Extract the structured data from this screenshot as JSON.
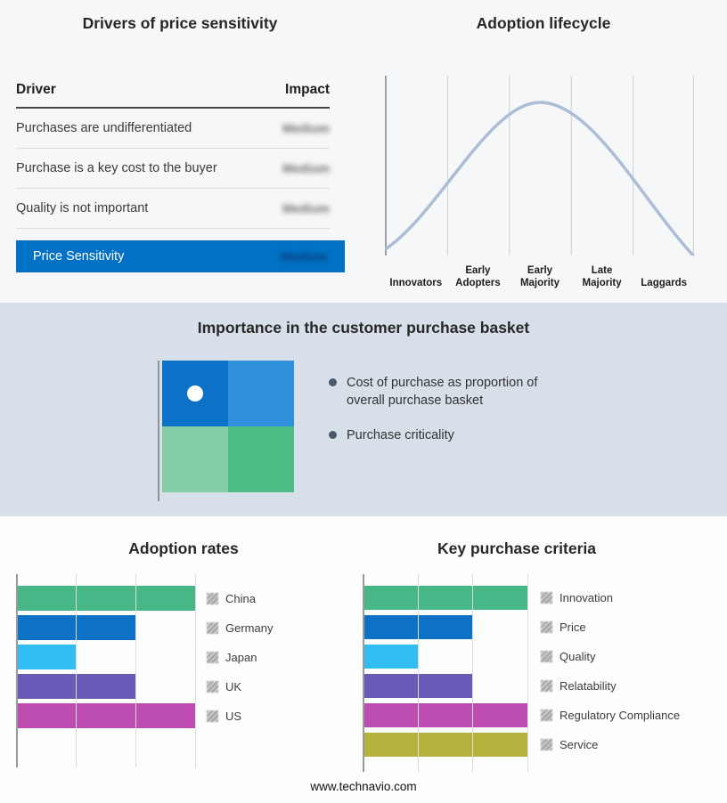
{
  "page": {
    "background": "#f6f7f8",
    "mid_band_background": "#d7dfe8",
    "footer_link": "www.technavio.com"
  },
  "drivers_panel": {
    "title": "Drivers of price sensitivity",
    "header": {
      "driver": "Driver",
      "impact": "Impact"
    },
    "rows": [
      {
        "driver": "Purchases are undifferentiated",
        "impact": "Medium",
        "impact_blurred": true
      },
      {
        "driver": "Purchase is a key cost to the buyer",
        "impact": "Medium",
        "impact_blurred": true
      },
      {
        "driver": "Quality is not important",
        "impact": "Medium",
        "impact_blurred": true
      }
    ],
    "summary_row": {
      "label": "Price Sensitivity",
      "impact": "Medium",
      "impact_blurred": true,
      "background": "#0071c5"
    }
  },
  "lifecycle_panel": {
    "title": "Adoption lifecycle",
    "stages": [
      "Innovators",
      "Early Adopters",
      "Early Majority",
      "Late Majority",
      "Laggards"
    ],
    "curve_color": "#adbdd6"
  },
  "basket_panel": {
    "title": "Importance in the customer purchase basket",
    "bullets": [
      "Cost of purchase as proportion of overall purchase basket",
      "Purchase criticality"
    ],
    "quadrant_colors": {
      "top_left": "#0b72c8",
      "top_right": "#3190dc",
      "bottom_left": "#85cda6",
      "bottom_right": "#4cbd86"
    },
    "dot_color": "#ffffff"
  },
  "chart_data": [
    {
      "type": "bar",
      "title": "Adoption rates",
      "orientation": "horizontal",
      "categories": [
        "China",
        "Germany",
        "Japan",
        "UK",
        "US"
      ],
      "values": [
        3,
        2,
        1,
        2,
        3
      ],
      "colors": [
        "#47b787",
        "#0d72c6",
        "#31bdf2",
        "#6a5ab8",
        "#bc4cb0"
      ],
      "xlim": [
        0,
        3
      ],
      "grid": true,
      "legend_position": "right"
    },
    {
      "type": "bar",
      "title": "Key purchase criteria",
      "orientation": "horizontal",
      "categories": [
        "Innovation",
        "Price",
        "Quality",
        "Relatability",
        "Regulatory Compliance",
        "Service"
      ],
      "values": [
        3,
        2,
        1,
        2,
        3,
        3
      ],
      "colors": [
        "#47b787",
        "#0d72c6",
        "#31bdf2",
        "#6a5ab8",
        "#bc4cb0",
        "#b5b23d"
      ],
      "xlim": [
        0,
        3
      ],
      "grid": true,
      "legend_position": "right"
    },
    {
      "type": "line",
      "title": "Adoption lifecycle",
      "x_categories": [
        "Innovators",
        "Early Adopters",
        "Early Majority",
        "Late Majority",
        "Laggards"
      ],
      "shape": "bell curve peaking over Early Majority",
      "color": "#adbdd6"
    }
  ]
}
